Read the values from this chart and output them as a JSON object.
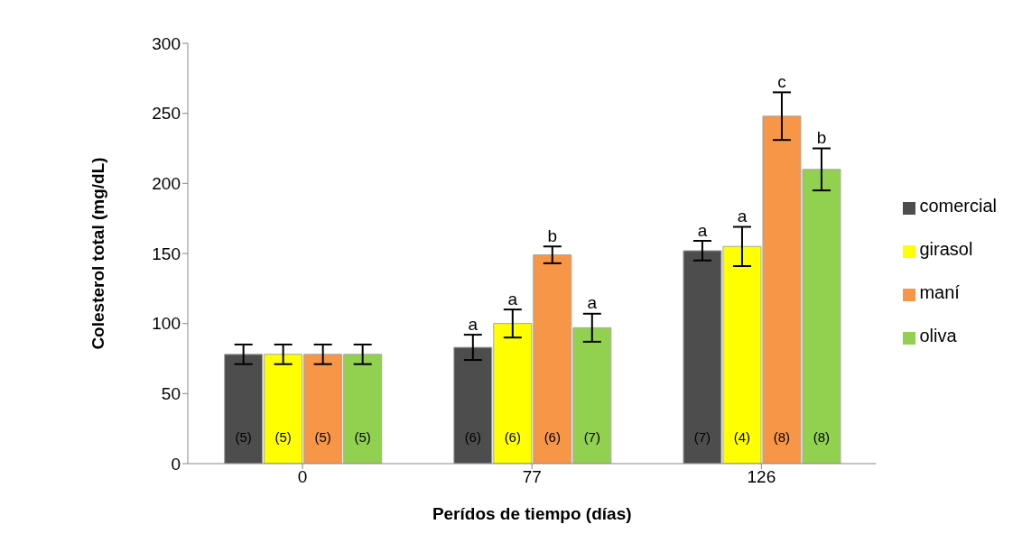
{
  "chart_data": {
    "type": "bar",
    "xlabel": "Perídos de tiempo (días)",
    "ylabel": "Colesterol  total (mg/dL)",
    "categories": [
      "0",
      "77",
      "126"
    ],
    "series": [
      {
        "name": "comercial",
        "color": "#4d4d4d",
        "values": [
          78,
          83,
          152
        ],
        "errors": [
          7,
          9,
          7
        ]
      },
      {
        "name": "girasol",
        "color": "#ffff00",
        "values": [
          78,
          100,
          155
        ],
        "errors": [
          7,
          10,
          14
        ]
      },
      {
        "name": "maní",
        "color": "#f79646",
        "values": [
          78,
          149,
          248
        ],
        "errors": [
          7,
          6,
          17
        ]
      },
      {
        "name": "oliva",
        "color": "#92d050",
        "values": [
          78,
          97,
          210
        ],
        "errors": [
          7,
          10,
          15
        ]
      }
    ],
    "ylim": [
      0,
      300
    ],
    "yticks": [
      0,
      50,
      100,
      150,
      200,
      250,
      300
    ],
    "grid": false,
    "legend": "right",
    "annotations": [
      "(5)",
      "(5)",
      "(5)",
      "(5)",
      "a",
      "a",
      "b",
      "a",
      "(6)",
      "(6)",
      "(6)",
      "(7)",
      "a",
      "a",
      "c",
      "b",
      "(7)",
      "(4)",
      "(8)",
      "(8)"
    ]
  }
}
